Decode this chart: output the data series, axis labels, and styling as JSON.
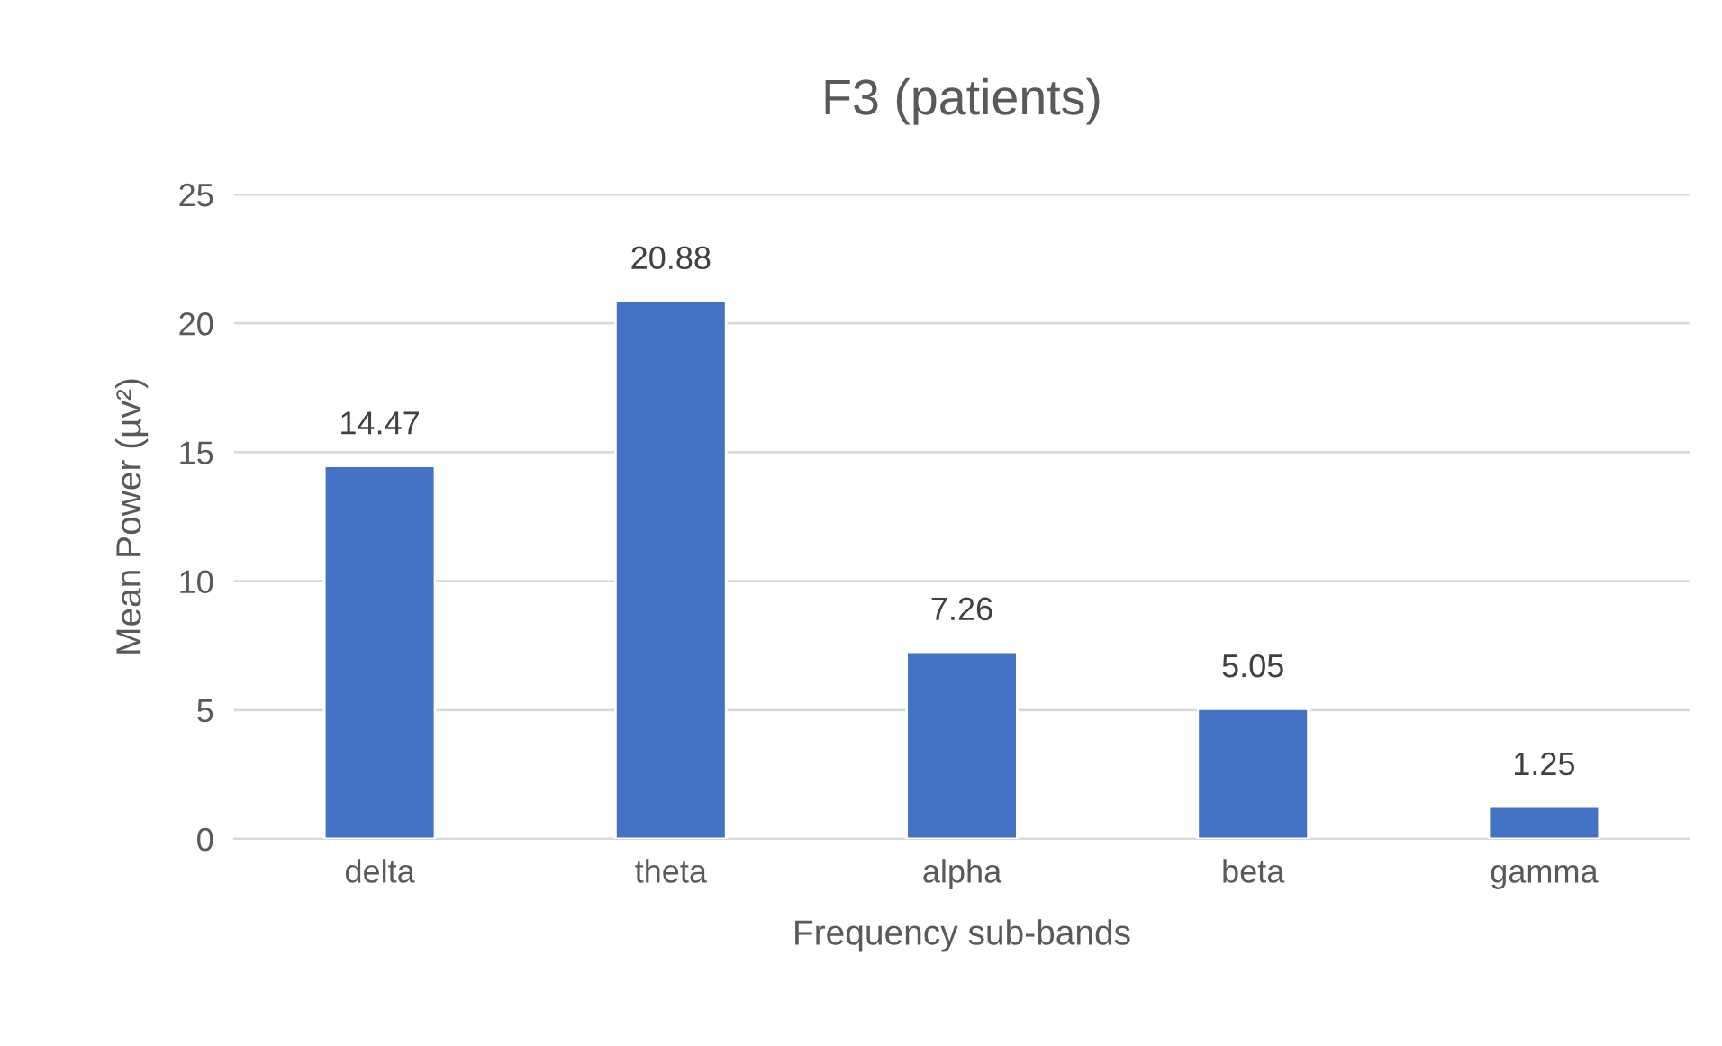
{
  "chart_data": {
    "type": "bar",
    "title": "F3 (patients)",
    "xlabel": "Frequency sub-bands",
    "ylabel": "Mean Power (µv²)",
    "categories": [
      "delta",
      "theta",
      "alpha",
      "beta",
      "gamma"
    ],
    "values": [
      14.47,
      20.88,
      7.26,
      5.05,
      1.25
    ],
    "color": "#4472c4",
    "ylim": [
      0,
      25
    ],
    "yticks": [
      0,
      5,
      10,
      15,
      20,
      25
    ],
    "grid": "y",
    "data_labels": true
  }
}
